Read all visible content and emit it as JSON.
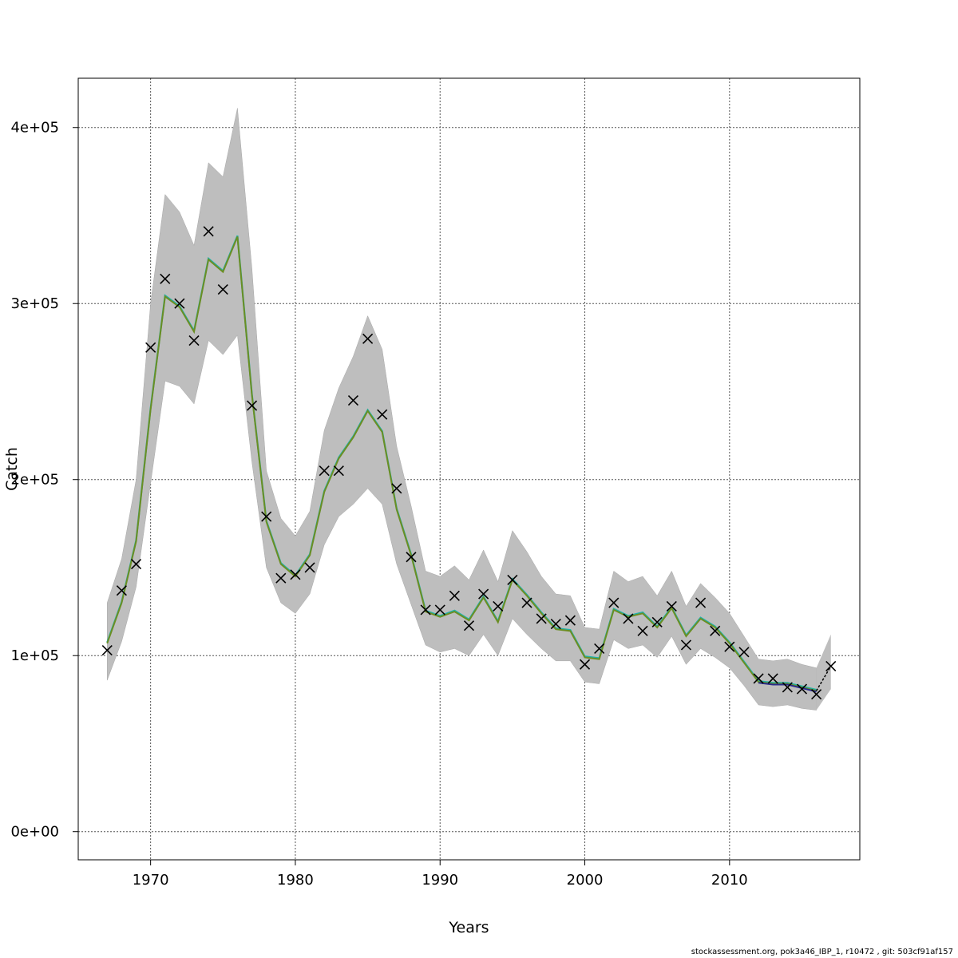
{
  "footer_text": "stockassessment.org, pok3a46_IBP_1, r10472 , git: 503cf91af157",
  "chart_data": {
    "type": "line",
    "title": "",
    "xlabel": "Years",
    "ylabel": "Catch",
    "xlim": [
      1965,
      2019
    ],
    "ylim": [
      -16000,
      428000
    ],
    "grid": true,
    "x_ticks": [
      1970,
      1980,
      1990,
      2000,
      2010
    ],
    "y_ticks": [
      0,
      100000,
      200000,
      300000,
      400000
    ],
    "y_tick_labels": [
      "0e+00",
      "1e+05",
      "2e+05",
      "3e+05",
      "4e+05"
    ],
    "colors": {
      "band": "#bebebe",
      "line_main": "#6b8e23",
      "line_alt": "#20b2aa",
      "line_tail": "#2b2b8c",
      "marker": "#000000",
      "grid": "#555555"
    },
    "years": [
      1967,
      1968,
      1969,
      1970,
      1971,
      1972,
      1973,
      1974,
      1975,
      1976,
      1977,
      1978,
      1979,
      1980,
      1981,
      1982,
      1983,
      1984,
      1985,
      1986,
      1987,
      1988,
      1989,
      1990,
      1991,
      1992,
      1993,
      1994,
      1995,
      1996,
      1997,
      1998,
      1999,
      2000,
      2001,
      2002,
      2003,
      2004,
      2005,
      2006,
      2007,
      2008,
      2009,
      2010,
      2011,
      2012,
      2013,
      2014,
      2015,
      2016
    ],
    "fitted": [
      107000,
      130000,
      165000,
      240000,
      304000,
      298000,
      284000,
      325000,
      318000,
      338000,
      248000,
      176000,
      152000,
      145000,
      157000,
      193000,
      212000,
      224000,
      239000,
      227000,
      183000,
      157000,
      125000,
      122000,
      125000,
      120000,
      133000,
      119000,
      143000,
      134000,
      124000,
      115000,
      114000,
      99000,
      98000,
      126000,
      122000,
      124000,
      116000,
      127000,
      111000,
      121000,
      116000,
      107000,
      96000,
      85000,
      84000,
      84000,
      82000,
      80000
    ],
    "upper": [
      130000,
      155000,
      200000,
      300000,
      362000,
      352000,
      333000,
      380000,
      372000,
      411000,
      320000,
      205000,
      178000,
      168000,
      182000,
      228000,
      252000,
      270000,
      293000,
      274000,
      219000,
      185000,
      148000,
      145000,
      151000,
      143000,
      160000,
      142000,
      171000,
      159000,
      145000,
      135000,
      134000,
      116000,
      115000,
      148000,
      142000,
      145000,
      134000,
      148000,
      128000,
      141000,
      133000,
      124000,
      111000,
      98000,
      97000,
      98000,
      95000,
      93000
    ],
    "lower": [
      86000,
      108000,
      139000,
      198000,
      256000,
      253000,
      243000,
      279000,
      271000,
      282000,
      210000,
      150000,
      130000,
      124000,
      135000,
      163000,
      179000,
      186000,
      195000,
      186000,
      152000,
      129000,
      106000,
      102000,
      104000,
      100000,
      112000,
      100000,
      121000,
      112000,
      104000,
      97000,
      97000,
      85000,
      84000,
      109000,
      104000,
      106000,
      99000,
      111000,
      95000,
      104000,
      99000,
      93000,
      83000,
      72000,
      71000,
      72000,
      70000,
      69000
    ],
    "tail": {
      "years": [
        2016,
        2017
      ],
      "fitted": [
        80000,
        94000
      ],
      "upper": [
        93000,
        112000
      ],
      "lower": [
        69000,
        81000
      ]
    },
    "observed": {
      "years": [
        1967,
        1968,
        1969,
        1970,
        1971,
        1972,
        1973,
        1974,
        1975,
        1977,
        1978,
        1979,
        1980,
        1981,
        1982,
        1983,
        1984,
        1985,
        1986,
        1987,
        1988,
        1989,
        1990,
        1991,
        1992,
        1993,
        1994,
        1995,
        1996,
        1997,
        1998,
        1999,
        2000,
        2001,
        2002,
        2003,
        2004,
        2005,
        2006,
        2007,
        2008,
        2009,
        2010,
        2011,
        2012,
        2013,
        2014,
        2015,
        2016,
        2017
      ],
      "values": [
        103000,
        137000,
        152000,
        275000,
        314000,
        300000,
        279000,
        341000,
        308000,
        242000,
        179000,
        144000,
        146000,
        150000,
        205000,
        205000,
        245000,
        280000,
        237000,
        195000,
        156000,
        126000,
        126000,
        134000,
        117000,
        135000,
        128000,
        143000,
        130000,
        121000,
        118000,
        120000,
        95000,
        104000,
        130000,
        121000,
        114000,
        119000,
        128000,
        106000,
        130000,
        114000,
        105000,
        102000,
        87000,
        87000,
        82000,
        81000,
        78000,
        94000
      ]
    }
  }
}
